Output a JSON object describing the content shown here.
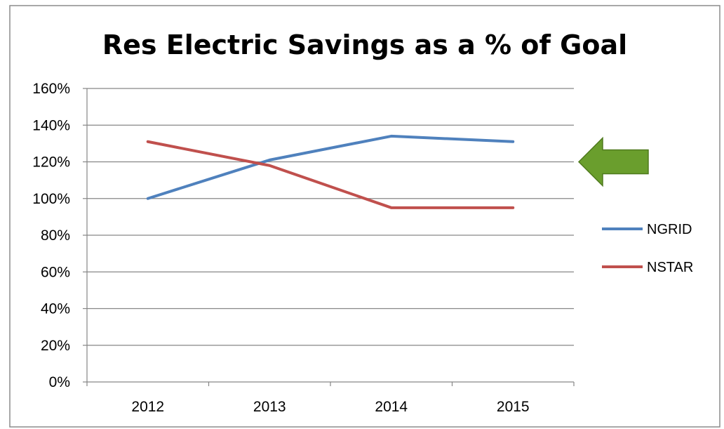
{
  "chart_data": {
    "type": "line",
    "title": "Res Electric Savings as a % of Goal",
    "xlabel": "",
    "ylabel": "",
    "categories": [
      "2012",
      "2013",
      "2014",
      "2015"
    ],
    "ylim": [
      0,
      160
    ],
    "yticks": [
      0,
      20,
      40,
      60,
      80,
      100,
      120,
      140,
      160
    ],
    "ytick_labels": [
      "0%",
      "20%",
      "40%",
      "60%",
      "80%",
      "100%",
      "120%",
      "140%",
      "160%"
    ],
    "grid": true,
    "legend_position": "right",
    "series": [
      {
        "name": "NGRID",
        "color": "#4f81bd",
        "values": [
          100,
          121,
          134,
          131
        ]
      },
      {
        "name": "NSTAR",
        "color": "#c0504d",
        "values": [
          131,
          118,
          95,
          95
        ]
      }
    ],
    "annotation": {
      "type": "arrow",
      "direction": "left",
      "color": "#6a9e2d",
      "points_to": 120
    }
  }
}
